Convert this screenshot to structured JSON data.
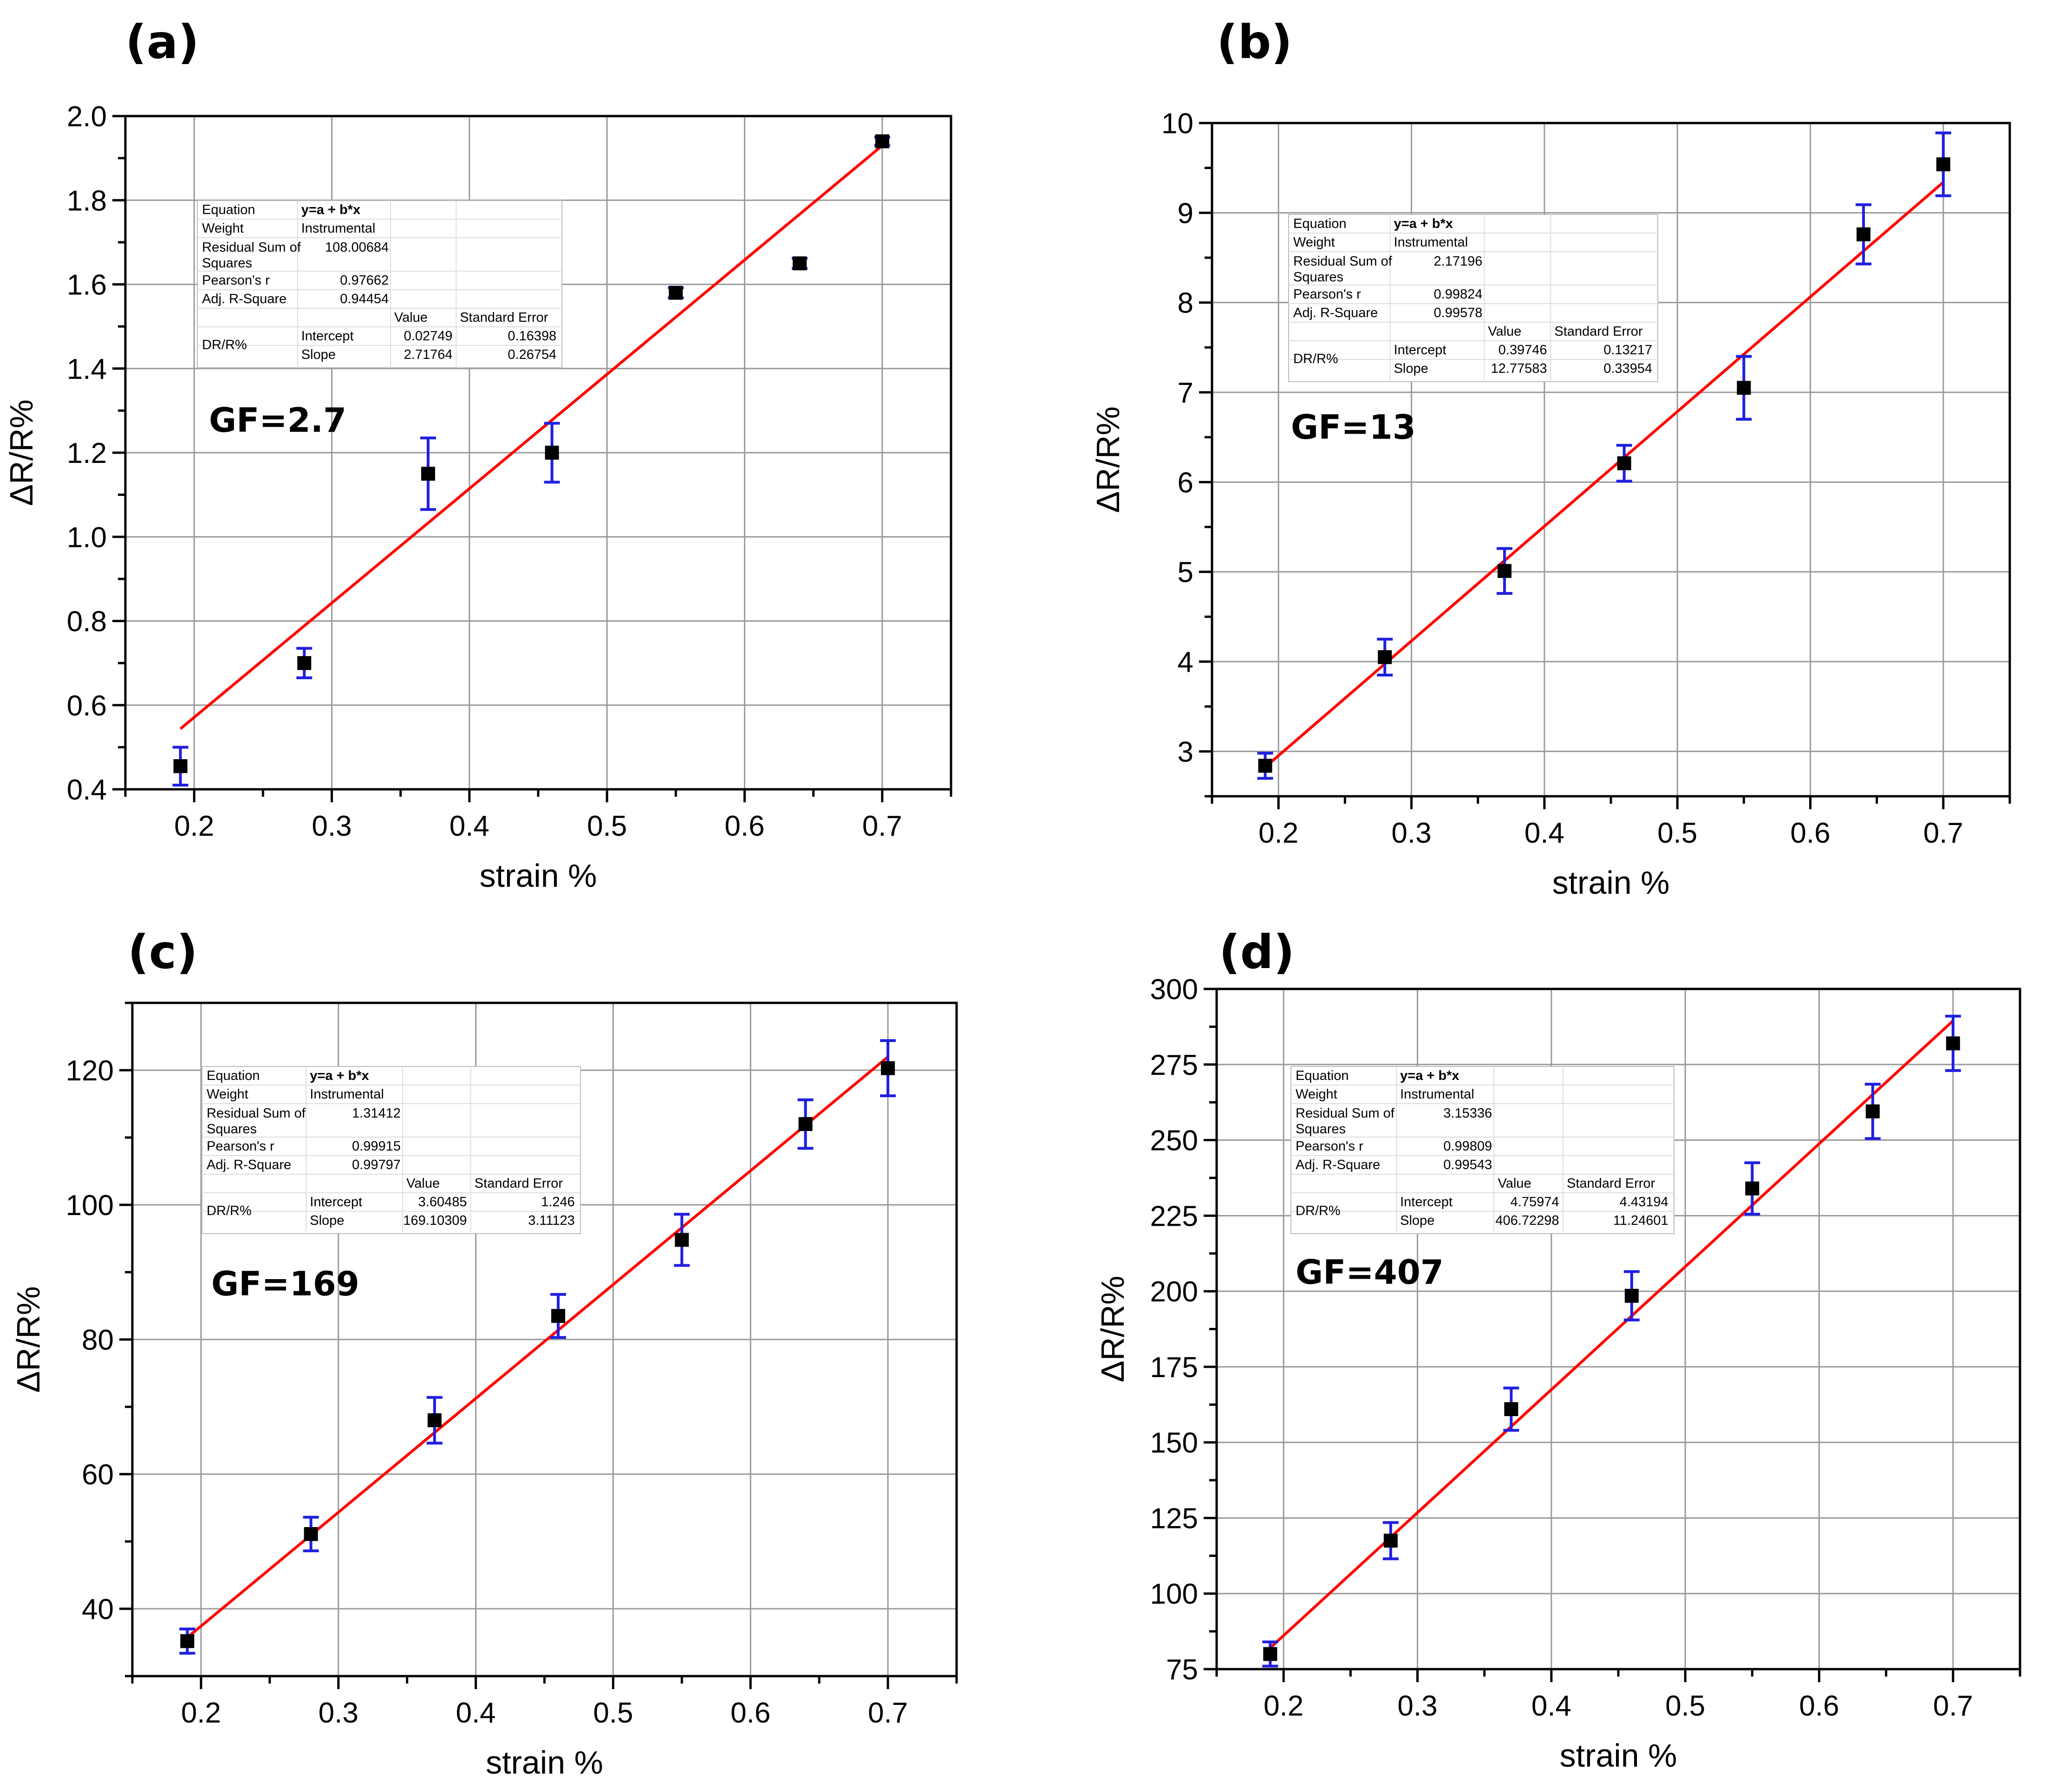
{
  "chart_data": [
    {
      "type": "scatter",
      "panel": "(a)",
      "gf_label": "GF=2.7",
      "xlabel": "strain %",
      "ylabel": "ΔR/R%",
      "xlim": [
        0.15,
        0.75
      ],
      "ylim": [
        0.4,
        2.0
      ],
      "xticks": [
        0.2,
        0.3,
        0.4,
        0.5,
        0.6,
        0.7
      ],
      "xtick_labels": [
        "0.2",
        "0.3",
        "0.4",
        "0.5",
        "0.6",
        "0.7"
      ],
      "yticks": [
        0.4,
        0.6,
        0.8,
        1.0,
        1.2,
        1.4,
        1.6,
        1.8,
        2.0
      ],
      "ytick_labels": [
        "0.4",
        "0.6",
        "0.8",
        "1.0",
        "1.2",
        "1.4",
        "1.6",
        "1.8",
        "2.0"
      ],
      "grid": true,
      "series": [
        {
          "name": "data",
          "x": [
            0.19,
            0.28,
            0.37,
            0.46,
            0.55,
            0.64,
            0.7
          ],
          "y": [
            0.455,
            0.7,
            1.15,
            1.2,
            1.58,
            1.65,
            1.94
          ],
          "err": [
            0.045,
            0.035,
            0.085,
            0.07,
            0.012,
            0.012,
            0.01
          ]
        }
      ],
      "fit": {
        "intercept": 0.02749,
        "slope": 2.71764,
        "x_range": [
          0.19,
          0.7
        ]
      },
      "stats_table": {
        "rows": [
          [
            "Equation",
            "y=a + b*x"
          ],
          [
            "Weight",
            "Instrumental"
          ],
          [
            "Residual Sum of Squares",
            "108.00684"
          ],
          [
            "Pearson's r",
            "0.97662"
          ],
          [
            "Adj. R-Square",
            "0.94454"
          ]
        ],
        "col_headers": [
          "Value",
          "Standard Error"
        ],
        "param_group": "DR/R%",
        "params": [
          [
            "Intercept",
            "0.02749",
            "0.16398"
          ],
          [
            "Slope",
            "2.71764",
            "0.26754"
          ]
        ]
      }
    },
    {
      "type": "scatter",
      "panel": "(b)",
      "gf_label": "GF=13",
      "xlabel": "strain %",
      "ylabel": "ΔR/R%",
      "xlim": [
        0.15,
        0.75
      ],
      "ylim": [
        2.5,
        10
      ],
      "xticks": [
        0.2,
        0.3,
        0.4,
        0.5,
        0.6,
        0.7
      ],
      "xtick_labels": [
        "0.2",
        "0.3",
        "0.4",
        "0.5",
        "0.6",
        "0.7"
      ],
      "yticks": [
        3,
        4,
        5,
        6,
        7,
        8,
        9,
        10
      ],
      "ytick_labels": [
        "3",
        "4",
        "5",
        "6",
        "7",
        "8",
        "9",
        "10"
      ],
      "grid": true,
      "series": [
        {
          "name": "data",
          "x": [
            0.19,
            0.28,
            0.37,
            0.46,
            0.55,
            0.64,
            0.7
          ],
          "y": [
            2.84,
            4.05,
            5.01,
            6.21,
            7.05,
            8.76,
            9.54
          ],
          "err": [
            0.14,
            0.2,
            0.25,
            0.2,
            0.35,
            0.33,
            0.35
          ]
        }
      ],
      "fit": {
        "intercept": 0.39746,
        "slope": 12.77583,
        "x_range": [
          0.19,
          0.7
        ]
      },
      "stats_table": {
        "rows": [
          [
            "Equation",
            "y=a + b*x"
          ],
          [
            "Weight",
            "Instrumental"
          ],
          [
            "Residual Sum of Squares",
            "2.17196"
          ],
          [
            "Pearson's r",
            "0.99824"
          ],
          [
            "Adj. R-Square",
            "0.99578"
          ]
        ],
        "col_headers": [
          "Value",
          "Standard Error"
        ],
        "param_group": "DR/R%",
        "params": [
          [
            "Intercept",
            "0.39746",
            "0.13217"
          ],
          [
            "Slope",
            "12.77583",
            "0.33954"
          ]
        ]
      }
    },
    {
      "type": "scatter",
      "panel": "(c)",
      "gf_label": "GF=169",
      "xlabel": "strain %",
      "ylabel": "ΔR/R%",
      "xlim": [
        0.15,
        0.75
      ],
      "ylim": [
        30,
        130
      ],
      "xticks": [
        0.2,
        0.3,
        0.4,
        0.5,
        0.6,
        0.7
      ],
      "xtick_labels": [
        "0.2",
        "0.3",
        "0.4",
        "0.5",
        "0.6",
        "0.7"
      ],
      "yticks": [
        40,
        60,
        80,
        100,
        120
      ],
      "ytick_labels": [
        "40",
        "60",
        "80",
        "100",
        "120"
      ],
      "grid": true,
      "series": [
        {
          "name": "data",
          "x": [
            0.19,
            0.28,
            0.37,
            0.46,
            0.55,
            0.64,
            0.7
          ],
          "y": [
            35.2,
            51.1,
            68.0,
            83.5,
            94.8,
            112.0,
            120.3
          ],
          "err": [
            1.8,
            2.5,
            3.4,
            3.2,
            3.8,
            3.6,
            4.1
          ]
        }
      ],
      "fit": {
        "intercept": 3.60485,
        "slope": 169.10309,
        "x_range": [
          0.19,
          0.7
        ]
      },
      "stats_table": {
        "rows": [
          [
            "Equation",
            "y=a + b*x"
          ],
          [
            "Weight",
            "Instrumental"
          ],
          [
            "Residual Sum of Squares",
            "1.31412"
          ],
          [
            "Pearson's r",
            "0.99915"
          ],
          [
            "Adj. R-Square",
            "0.99797"
          ]
        ],
        "col_headers": [
          "Value",
          "Standard Error"
        ],
        "param_group": "DR/R%",
        "params": [
          [
            "Intercept",
            "3.60485",
            "1.246"
          ],
          [
            "Slope",
            "169.10309",
            "3.11123"
          ]
        ]
      }
    },
    {
      "type": "scatter",
      "panel": "(d)",
      "gf_label": "GF=407",
      "xlabel": "strain %",
      "ylabel": "ΔR/R%",
      "xlim": [
        0.15,
        0.75
      ],
      "ylim": [
        75,
        300
      ],
      "xticks": [
        0.2,
        0.3,
        0.4,
        0.5,
        0.6,
        0.7
      ],
      "xtick_labels": [
        "0.2",
        "0.3",
        "0.4",
        "0.5",
        "0.6",
        "0.7"
      ],
      "yticks": [
        75,
        100,
        125,
        150,
        175,
        200,
        225,
        250,
        275,
        300
      ],
      "ytick_labels": [
        "75",
        "100",
        "125",
        "150",
        "175",
        "200",
        "225",
        "250",
        "275",
        "300"
      ],
      "grid": true,
      "series": [
        {
          "name": "data",
          "x": [
            0.19,
            0.28,
            0.37,
            0.46,
            0.55,
            0.64,
            0.7
          ],
          "y": [
            80,
            117.5,
            161,
            198.5,
            234,
            259.5,
            282
          ],
          "err": [
            4,
            6,
            7,
            8,
            8.5,
            9,
            9
          ]
        }
      ],
      "fit": {
        "intercept": 4.75974,
        "slope": 406.72298,
        "x_range": [
          0.19,
          0.7
        ]
      },
      "stats_table": {
        "rows": [
          [
            "Equation",
            "y=a + b*x"
          ],
          [
            "Weight",
            "Instrumental"
          ],
          [
            "Residual Sum of Squares",
            "3.15336"
          ],
          [
            "Pearson's r",
            "0.99809"
          ],
          [
            "Adj. R-Square",
            "0.99543"
          ]
        ],
        "col_headers": [
          "Value",
          "Standard Error"
        ],
        "param_group": "DR/R%",
        "params": [
          [
            "Intercept",
            "4.75974",
            "4.43194"
          ],
          [
            "Slope",
            "406.72298",
            "11.24601"
          ]
        ]
      }
    }
  ]
}
